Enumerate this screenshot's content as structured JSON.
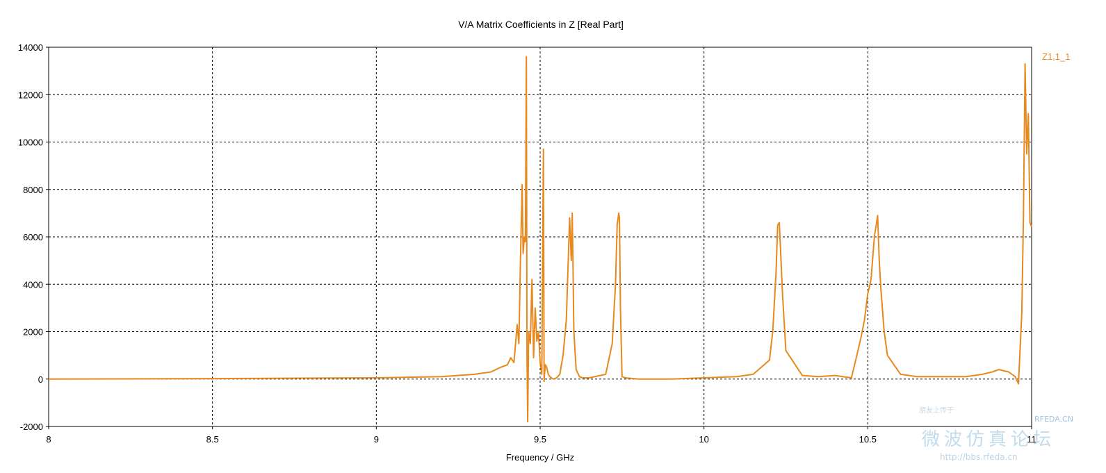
{
  "chart_data": {
    "type": "line",
    "title": "V/A Matrix Coefficients in Z [Real Part]",
    "xlabel": "Frequency / GHz",
    "ylabel": "",
    "xlim": [
      8,
      11
    ],
    "ylim": [
      -2000,
      14000
    ],
    "xticks": [
      8,
      8.5,
      9,
      9.5,
      10,
      10.5,
      11
    ],
    "xtick_labels": [
      "8",
      "8.5",
      "9",
      "9.5",
      "10",
      "10.5",
      "11"
    ],
    "yticks": [
      -2000,
      0,
      2000,
      4000,
      6000,
      8000,
      10000,
      12000,
      14000
    ],
    "ytick_labels": [
      "-2000",
      "0",
      "2000",
      "4000",
      "6000",
      "8000",
      "10000",
      "12000",
      "14000"
    ],
    "grid": true,
    "legend_position": "right",
    "series": [
      {
        "name": "Z1,1_1",
        "color": "#e8891d",
        "x": [
          8.0,
          8.5,
          9.0,
          9.2,
          9.3,
          9.35,
          9.38,
          9.4,
          9.41,
          9.42,
          9.43,
          9.435,
          9.44,
          9.445,
          9.448,
          9.452,
          9.455,
          9.458,
          9.46,
          9.462,
          9.465,
          9.47,
          9.475,
          9.48,
          9.485,
          9.49,
          9.495,
          9.5,
          9.505,
          9.51,
          9.512,
          9.514,
          9.516,
          9.52,
          9.525,
          9.53,
          9.54,
          9.55,
          9.56,
          9.57,
          9.58,
          9.59,
          9.595,
          9.598,
          9.6,
          9.603,
          9.61,
          9.62,
          9.63,
          9.65,
          9.7,
          9.72,
          9.73,
          9.735,
          9.74,
          9.742,
          9.745,
          9.75,
          9.76,
          9.8,
          9.9,
          10.0,
          10.1,
          10.15,
          10.2,
          10.21,
          10.22,
          10.225,
          10.23,
          10.24,
          10.25,
          10.3,
          10.35,
          10.4,
          10.45,
          10.47,
          10.48,
          10.49,
          10.5,
          10.51,
          10.52,
          10.53,
          10.535,
          10.54,
          10.55,
          10.56,
          10.6,
          10.65,
          10.7,
          10.8,
          10.85,
          10.88,
          10.9,
          10.93,
          10.95,
          10.96,
          10.97,
          10.975,
          10.98,
          10.985,
          10.99,
          10.995,
          10.998,
          11.0
        ],
        "values": [
          0,
          20,
          50,
          100,
          200,
          300,
          500,
          600,
          900,
          700,
          2300,
          1500,
          5000,
          8200,
          5300,
          6000,
          5800,
          13600,
          1000,
          -1800,
          2000,
          1500,
          4200,
          900,
          3000,
          1600,
          2000,
          700,
          200,
          9700,
          -100,
          300,
          600,
          500,
          200,
          100,
          0,
          50,
          200,
          1000,
          2500,
          6800,
          5000,
          7000,
          5200,
          2000,
          400,
          100,
          50,
          50,
          200,
          1500,
          4000,
          6500,
          7000,
          6800,
          3000,
          100,
          50,
          0,
          0,
          50,
          100,
          200,
          800,
          2000,
          4500,
          6500,
          6600,
          3500,
          1200,
          150,
          100,
          150,
          50,
          1200,
          1800,
          2500,
          3600,
          4200,
          6000,
          6900,
          5000,
          3800,
          2000,
          1000,
          200,
          100,
          100,
          100,
          200,
          300,
          400,
          300,
          100,
          -200,
          2800,
          6800,
          13300,
          9500,
          11200,
          6600,
          6500,
          6400
        ]
      }
    ]
  },
  "watermark": {
    "line1": "朋友上传于",
    "line2": "RFEDA.CN",
    "line3": "微波仿真论坛",
    "line4": "http://bbs.rfeda.cn"
  }
}
